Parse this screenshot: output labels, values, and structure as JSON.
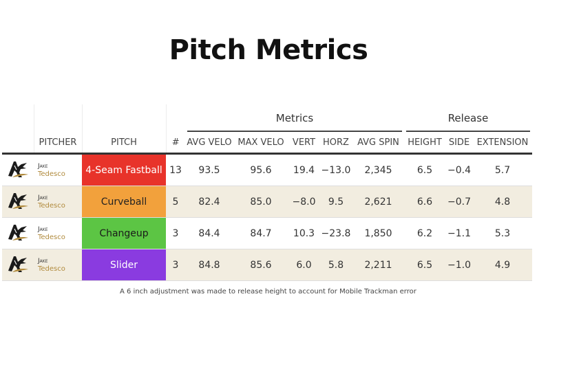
{
  "title": "Pitch Metrics",
  "groups": {
    "metrics": "Metrics",
    "release": "Release"
  },
  "columns": {
    "pitcher": "PITCHER",
    "pitch": "PITCH",
    "count": "#",
    "avg_velo": "AVG VELO",
    "max_velo": "MAX VELO",
    "vert": "VERT",
    "horz": "HORZ",
    "avg_spin": "AVG SPIN",
    "height": "HEIGHT",
    "side": "SIDE",
    "extension": "EXTENSION"
  },
  "rows": [
    {
      "first": "Jake",
      "last": "Tedesco",
      "pitch": "4-Seam Fastball",
      "pitch_color": "#e8332a",
      "count": "13",
      "avg_velo": "93.5",
      "max_velo": "95.6",
      "vert": "19.4",
      "horz": "−13.0",
      "avg_spin": "2,345",
      "height": "6.5",
      "side": "−0.4",
      "extension": "5.7"
    },
    {
      "first": "Jake",
      "last": "Tedesco",
      "pitch": "Curveball",
      "pitch_color": "#f2a13c",
      "count": "5",
      "avg_velo": "82.4",
      "max_velo": "85.0",
      "vert": "−8.0",
      "horz": "9.5",
      "avg_spin": "2,621",
      "height": "6.6",
      "side": "−0.7",
      "extension": "4.8"
    },
    {
      "first": "Jake",
      "last": "Tedesco",
      "pitch": "Changeup",
      "pitch_color": "#5cc544",
      "count": "3",
      "avg_velo": "84.4",
      "max_velo": "84.7",
      "vert": "10.3",
      "horz": "−23.8",
      "avg_spin": "1,850",
      "height": "6.2",
      "side": "−1.1",
      "extension": "5.3"
    },
    {
      "first": "Jake",
      "last": "Tedesco",
      "pitch": "Slider",
      "pitch_color": "#8a3be0",
      "count": "3",
      "avg_velo": "84.8",
      "max_velo": "85.6",
      "vert": "6.0",
      "horz": "5.8",
      "avg_spin": "2,211",
      "height": "6.5",
      "side": "−1.0",
      "extension": "4.9"
    }
  ],
  "logo_icon": "team-logo-icon",
  "footnote": "A 6 inch adjustment was made to release height to account for Mobile Trackman error"
}
